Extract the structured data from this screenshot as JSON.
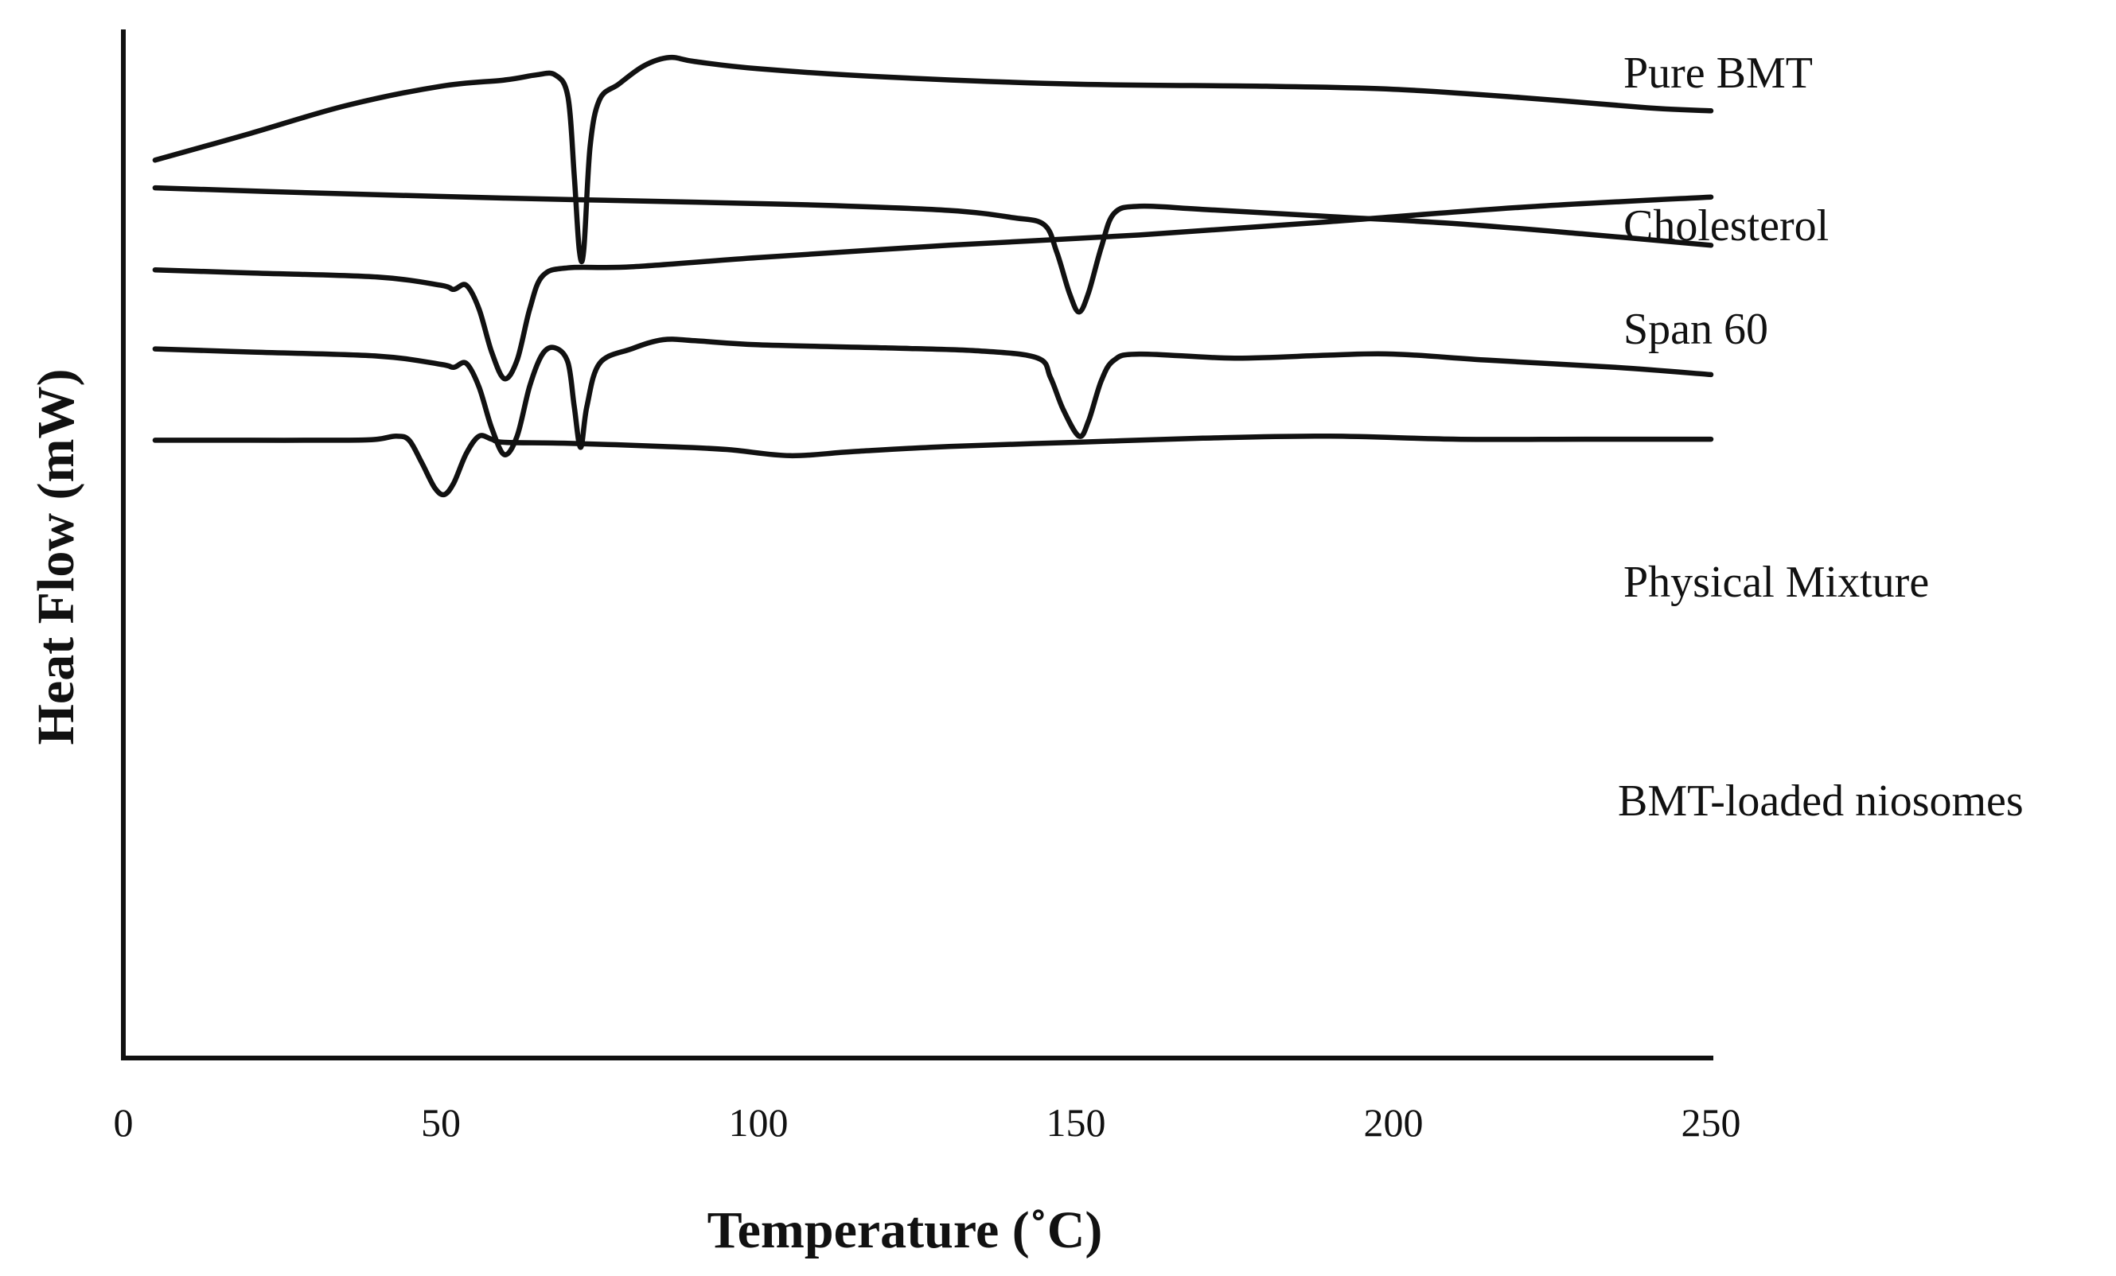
{
  "chart_data": {
    "type": "line",
    "title": "",
    "xlabel": "Temperature (˚C)",
    "ylabel": "Heat Flow (mW)",
    "xlim": [
      0,
      250
    ],
    "xticks": [
      "0",
      "50",
      "100",
      "150",
      "200",
      "250"
    ],
    "grid": false,
    "legend": "inline labels at right end of each trace",
    "note": "DSC thermograms, curves vertically offset; y values are relative heat flow (arbitrary units, offset per trace)",
    "series": [
      {
        "name": "Pure BMT",
        "points": [
          [
            5,
            8.75
          ],
          [
            20,
            9.01
          ],
          [
            35,
            9.28
          ],
          [
            50,
            9.47
          ],
          [
            60,
            9.53
          ],
          [
            65,
            9.58
          ],
          [
            68,
            9.58
          ],
          [
            70,
            9.37
          ],
          [
            71,
            8.6
          ],
          [
            71.8,
            7.87
          ],
          [
            72.5,
            7.87
          ],
          [
            73.5,
            8.88
          ],
          [
            75,
            9.34
          ],
          [
            78,
            9.49
          ],
          [
            82,
            9.67
          ],
          [
            86,
            9.75
          ],
          [
            90,
            9.71
          ],
          [
            100,
            9.64
          ],
          [
            120,
            9.56
          ],
          [
            150,
            9.49
          ],
          [
            180,
            9.47
          ],
          [
            200,
            9.44
          ],
          [
            220,
            9.36
          ],
          [
            240,
            9.26
          ],
          [
            250,
            9.23
          ]
        ]
      },
      {
        "name": "Cholesterol",
        "points": [
          [
            5,
            8.48
          ],
          [
            30,
            8.43
          ],
          [
            60,
            8.38
          ],
          [
            90,
            8.34
          ],
          [
            110,
            8.31
          ],
          [
            130,
            8.26
          ],
          [
            140,
            8.19
          ],
          [
            145,
            8.12
          ],
          [
            147,
            7.85
          ],
          [
            149,
            7.45
          ],
          [
            150.5,
            7.27
          ],
          [
            152,
            7.46
          ],
          [
            154,
            7.9
          ],
          [
            156,
            8.23
          ],
          [
            160,
            8.3
          ],
          [
            170,
            8.27
          ],
          [
            190,
            8.2
          ],
          [
            210,
            8.13
          ],
          [
            230,
            8.03
          ],
          [
            250,
            7.92
          ]
        ]
      },
      {
        "name": "Span 60",
        "points": [
          [
            5,
            7.68
          ],
          [
            20,
            7.65
          ],
          [
            40,
            7.61
          ],
          [
            50,
            7.53
          ],
          [
            52,
            7.49
          ],
          [
            54,
            7.53
          ],
          [
            56,
            7.3
          ],
          [
            58,
            6.88
          ],
          [
            60,
            6.62
          ],
          [
            62,
            6.8
          ],
          [
            64,
            7.3
          ],
          [
            66,
            7.62
          ],
          [
            70,
            7.7
          ],
          [
            80,
            7.71
          ],
          [
            100,
            7.8
          ],
          [
            130,
            7.92
          ],
          [
            160,
            8.02
          ],
          [
            190,
            8.15
          ],
          [
            220,
            8.29
          ],
          [
            250,
            8.39
          ]
        ]
      },
      {
        "name": "Physical Mixture",
        "points": [
          [
            5,
            6.91
          ],
          [
            20,
            6.88
          ],
          [
            40,
            6.84
          ],
          [
            50,
            6.76
          ],
          [
            52,
            6.73
          ],
          [
            54,
            6.77
          ],
          [
            56,
            6.54
          ],
          [
            58,
            6.14
          ],
          [
            60,
            5.88
          ],
          [
            62,
            6.06
          ],
          [
            64,
            6.55
          ],
          [
            66,
            6.86
          ],
          [
            68,
            6.92
          ],
          [
            70,
            6.78
          ],
          [
            71,
            6.35
          ],
          [
            72,
            5.95
          ],
          [
            73,
            6.35
          ],
          [
            75,
            6.77
          ],
          [
            80,
            6.91
          ],
          [
            85,
            7.0
          ],
          [
            90,
            6.99
          ],
          [
            100,
            6.95
          ],
          [
            120,
            6.92
          ],
          [
            135,
            6.89
          ],
          [
            144,
            6.82
          ],
          [
            146,
            6.63
          ],
          [
            148,
            6.32
          ],
          [
            150.5,
            6.06
          ],
          [
            152,
            6.21
          ],
          [
            154,
            6.6
          ],
          [
            156,
            6.8
          ],
          [
            160,
            6.86
          ],
          [
            175,
            6.82
          ],
          [
            190,
            6.85
          ],
          [
            200,
            6.86
          ],
          [
            215,
            6.8
          ],
          [
            235,
            6.73
          ],
          [
            250,
            6.66
          ]
        ]
      },
      {
        "name": "BMT-loaded niosomes",
        "points": [
          [
            5,
            6.02
          ],
          [
            20,
            6.02
          ],
          [
            35,
            6.02
          ],
          [
            40,
            6.03
          ],
          [
            43,
            6.06
          ],
          [
            45,
            6.02
          ],
          [
            47,
            5.8
          ],
          [
            49,
            5.56
          ],
          [
            50.5,
            5.49
          ],
          [
            52,
            5.6
          ],
          [
            54,
            5.89
          ],
          [
            56,
            6.06
          ],
          [
            58,
            6.03
          ],
          [
            60,
            6.0
          ],
          [
            70,
            5.99
          ],
          [
            85,
            5.96
          ],
          [
            95,
            5.93
          ],
          [
            105,
            5.87
          ],
          [
            115,
            5.91
          ],
          [
            130,
            5.96
          ],
          [
            150,
            6.0
          ],
          [
            170,
            6.04
          ],
          [
            190,
            6.06
          ],
          [
            210,
            6.03
          ],
          [
            230,
            6.03
          ],
          [
            250,
            6.03
          ]
        ]
      }
    ]
  }
}
